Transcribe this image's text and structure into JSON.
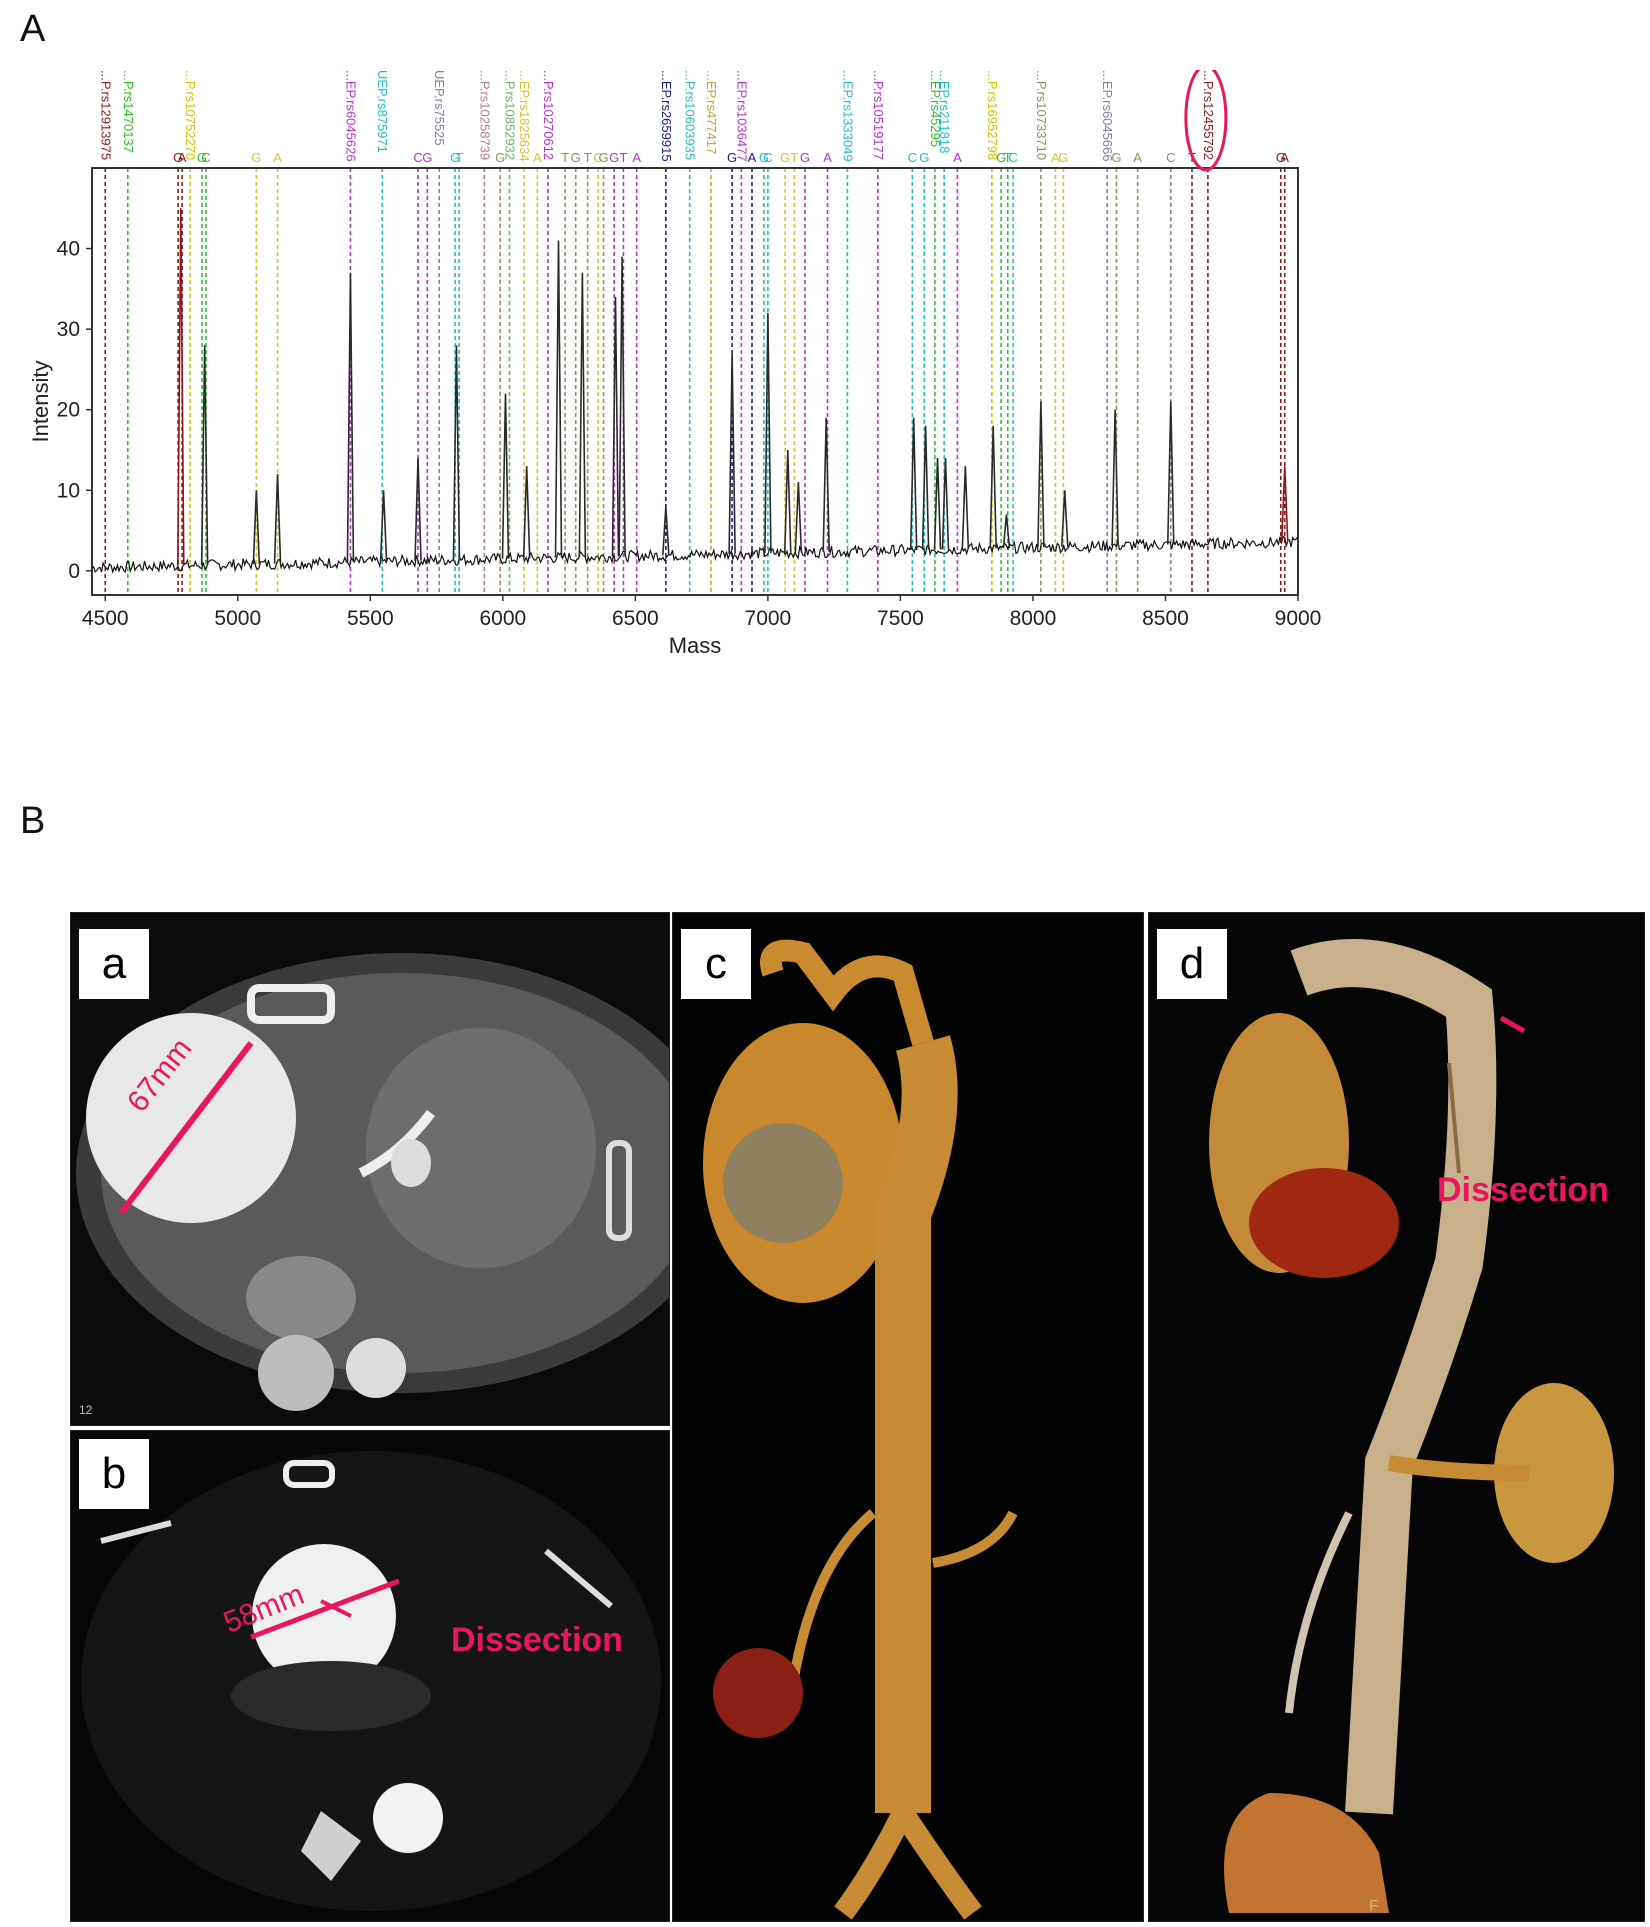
{
  "figure": {
    "panel_A_letter": "A",
    "panel_B_letter": "B"
  },
  "chart_data": {
    "type": "line",
    "xlabel": "Mass",
    "ylabel": "Intensity",
    "xlim": [
      4450,
      9000
    ],
    "ylim": [
      -3,
      50
    ],
    "x_ticks": [
      4500,
      5000,
      5500,
      6000,
      6500,
      7000,
      7500,
      8000,
      8500,
      9000
    ],
    "y_ticks": [
      0,
      10,
      20,
      30,
      40
    ],
    "peaks": [
      {
        "x": 4785,
        "y": 45,
        "color": "#8b1a1a"
      },
      {
        "x": 4875,
        "y": 28,
        "color": "#2a2a2a"
      },
      {
        "x": 5070,
        "y": 10,
        "color": "#2a2a2a"
      },
      {
        "x": 5150,
        "y": 12,
        "color": "#2a2a2a"
      },
      {
        "x": 5425,
        "y": 37,
        "color": "#2a2a2a"
      },
      {
        "x": 5550,
        "y": 10,
        "color": "#2a2a2a"
      },
      {
        "x": 5680,
        "y": 14,
        "color": "#2a2a2a"
      },
      {
        "x": 5825,
        "y": 28,
        "color": "#2a2a2a"
      },
      {
        "x": 6010,
        "y": 22,
        "color": "#2a2a2a"
      },
      {
        "x": 6090,
        "y": 13,
        "color": "#2a2a2a"
      },
      {
        "x": 6210,
        "y": 41,
        "color": "#2a2a2a"
      },
      {
        "x": 6300,
        "y": 37,
        "color": "#2a2a2a"
      },
      {
        "x": 6425,
        "y": 34,
        "color": "#2a2a2a"
      },
      {
        "x": 6450,
        "y": 39,
        "color": "#2a2a2a"
      },
      {
        "x": 6615,
        "y": 8,
        "color": "#2a2a2a"
      },
      {
        "x": 6865,
        "y": 27,
        "color": "#2a2a2a"
      },
      {
        "x": 7000,
        "y": 32,
        "color": "#2a2a2a"
      },
      {
        "x": 7075,
        "y": 15,
        "color": "#2a2a2a"
      },
      {
        "x": 7115,
        "y": 11,
        "color": "#2a2a2a"
      },
      {
        "x": 7220,
        "y": 19,
        "color": "#2a2a2a"
      },
      {
        "x": 7550,
        "y": 19,
        "color": "#2a2a2a"
      },
      {
        "x": 7595,
        "y": 18,
        "color": "#2a2a2a"
      },
      {
        "x": 7640,
        "y": 14,
        "color": "#2a2a2a"
      },
      {
        "x": 7670,
        "y": 14,
        "color": "#2a2a2a"
      },
      {
        "x": 7745,
        "y": 13,
        "color": "#2a2a2a"
      },
      {
        "x": 7850,
        "y": 18,
        "color": "#2a2a2a"
      },
      {
        "x": 7900,
        "y": 7,
        "color": "#2a2a2a"
      },
      {
        "x": 8030,
        "y": 21,
        "color": "#2a2a2a"
      },
      {
        "x": 8120,
        "y": 10,
        "color": "#2a2a2a"
      },
      {
        "x": 8310,
        "y": 20,
        "color": "#2a2a2a"
      },
      {
        "x": 8520,
        "y": 21,
        "color": "#2a2a2a"
      },
      {
        "x": 8950,
        "y": 13,
        "color": "#8b1a1a"
      }
    ],
    "markers": [
      {
        "x": 4500,
        "label": "...P.rs12913975",
        "color": "#8b1a1a",
        "allele": ""
      },
      {
        "x": 4585,
        "label": "...P.rs1470137",
        "color": "#2ec02e",
        "allele": ""
      },
      {
        "x": 4775,
        "label": "",
        "color": "#8b1a1a",
        "allele": "G"
      },
      {
        "x": 4790,
        "label": "",
        "color": "#8b1a1a",
        "allele": "A"
      },
      {
        "x": 4820,
        "label": "...P.rs10752270",
        "color": "#c8c800",
        "allele": ""
      },
      {
        "x": 4865,
        "label": "",
        "color": "#2ec02e",
        "allele": "G"
      },
      {
        "x": 4880,
        "label": "",
        "color": "#2ec02e",
        "allele": "C"
      },
      {
        "x": 5070,
        "label": "",
        "color": "#d4c430",
        "allele": "G"
      },
      {
        "x": 5150,
        "label": "",
        "color": "#d4c430",
        "allele": "A"
      },
      {
        "x": 5425,
        "label": "...EP.rs6045626",
        "color": "#b533c8",
        "allele": ""
      },
      {
        "x": 5545,
        "label": "UEP.rs875971",
        "color": "#20c0c0",
        "allele": ""
      },
      {
        "x": 5680,
        "label": "",
        "color": "#b533c8",
        "allele": "C"
      },
      {
        "x": 5715,
        "label": "",
        "color": "#b533c8",
        "allele": "G"
      },
      {
        "x": 5760,
        "label": "UEP.rs75525",
        "color": "#8080a0",
        "allele": ""
      },
      {
        "x": 5820,
        "label": "",
        "color": "#20c0c0",
        "allele": "G"
      },
      {
        "x": 5835,
        "label": "",
        "color": "#20c0c0",
        "allele": "T"
      },
      {
        "x": 5930,
        "label": "...P.rs10258739",
        "color": "#b08080",
        "allele": ""
      },
      {
        "x": 5990,
        "label": "",
        "color": "#909060",
        "allele": "G"
      },
      {
        "x": 6025,
        "label": "...P.rs10852932",
        "color": "#70b070",
        "allele": ""
      },
      {
        "x": 6080,
        "label": "...EP.rs1825634",
        "color": "#d4c430",
        "allele": ""
      },
      {
        "x": 6130,
        "label": "",
        "color": "#d4c430",
        "allele": "A"
      },
      {
        "x": 6170,
        "label": "...P.rs10270612",
        "color": "#b533c8",
        "allele": ""
      },
      {
        "x": 6235,
        "label": "",
        "color": "#909060",
        "allele": "T"
      },
      {
        "x": 6275,
        "label": "",
        "color": "#909060",
        "allele": "G"
      },
      {
        "x": 6320,
        "label": "",
        "color": "#909060",
        "allele": "T"
      },
      {
        "x": 6360,
        "label": "",
        "color": "#d4c430",
        "allele": "C"
      },
      {
        "x": 6380,
        "label": "",
        "color": "#909060",
        "allele": "G"
      },
      {
        "x": 6420,
        "label": "",
        "color": "#b533c8",
        "allele": "G"
      },
      {
        "x": 6455,
        "label": "",
        "color": "#b533c8",
        "allele": "T"
      },
      {
        "x": 6505,
        "label": "",
        "color": "#b533c8",
        "allele": "A"
      },
      {
        "x": 6615,
        "label": "...EP.rs2659915",
        "color": "#1a1a90",
        "allele": ""
      },
      {
        "x": 6705,
        "label": "...P.rs10603935",
        "color": "#20c0c0",
        "allele": ""
      },
      {
        "x": 6785,
        "label": "...EP.rs477417",
        "color": "#d4a020",
        "allele": ""
      },
      {
        "x": 6865,
        "label": "",
        "color": "#1a1a90",
        "allele": "G"
      },
      {
        "x": 6900,
        "label": "...EP.rs1036477",
        "color": "#b533c8",
        "allele": ""
      },
      {
        "x": 6940,
        "label": "",
        "color": "#1a1a90",
        "allele": "A"
      },
      {
        "x": 6985,
        "label": "",
        "color": "#20c0c0",
        "allele": "G"
      },
      {
        "x": 7000,
        "label": "",
        "color": "#20c0c0",
        "allele": "C"
      },
      {
        "x": 7065,
        "label": "",
        "color": "#d4c430",
        "allele": "G"
      },
      {
        "x": 7100,
        "label": "",
        "color": "#d4c430",
        "allele": "T"
      },
      {
        "x": 7140,
        "label": "",
        "color": "#b533c8",
        "allele": "G"
      },
      {
        "x": 7225,
        "label": "",
        "color": "#b533c8",
        "allele": "A"
      },
      {
        "x": 7300,
        "label": "...EP.rs1333049",
        "color": "#20c0c0",
        "allele": ""
      },
      {
        "x": 7415,
        "label": "...P.rs10519177",
        "color": "#b533c8",
        "allele": ""
      },
      {
        "x": 7545,
        "label": "",
        "color": "#20c0c0",
        "allele": "C"
      },
      {
        "x": 7590,
        "label": "",
        "color": "#20c0c0",
        "allele": "G"
      },
      {
        "x": 7630,
        "label": "...EP.rs45295",
        "color": "#2ec02e",
        "allele": ""
      },
      {
        "x": 7665,
        "label": "...EP.rs211818",
        "color": "#20c0c0",
        "allele": ""
      },
      {
        "x": 7715,
        "label": "",
        "color": "#b533c8",
        "allele": "A"
      },
      {
        "x": 7845,
        "label": "...P.rs16952798",
        "color": "#c8c800",
        "allele": ""
      },
      {
        "x": 7880,
        "label": "",
        "color": "#2ec02e",
        "allele": "G"
      },
      {
        "x": 7905,
        "label": "",
        "color": "#2ec02e",
        "allele": "T"
      },
      {
        "x": 7925,
        "label": "",
        "color": "#20c0c0",
        "allele": "C"
      },
      {
        "x": 8030,
        "label": "...P.rs10733710",
        "color": "#909060",
        "allele": ""
      },
      {
        "x": 8085,
        "label": "",
        "color": "#d4c430",
        "allele": "A"
      },
      {
        "x": 8115,
        "label": "",
        "color": "#d4c430",
        "allele": "G"
      },
      {
        "x": 8280,
        "label": "...EP.rs6045666",
        "color": "#8080a0",
        "allele": ""
      },
      {
        "x": 8315,
        "label": "",
        "color": "#909060",
        "allele": "G"
      },
      {
        "x": 8395,
        "label": "",
        "color": "#909060",
        "allele": "A"
      },
      {
        "x": 8520,
        "label": "",
        "color": "#8080a0",
        "allele": "C"
      },
      {
        "x": 8600,
        "label": "",
        "color": "#8b1a1a",
        "allele": "T"
      },
      {
        "x": 8660,
        "label": "...P.rs12455792",
        "color": "#8b1a1a",
        "allele": ""
      },
      {
        "x": 8935,
        "label": "",
        "color": "#8b1a1a",
        "allele": "G"
      },
      {
        "x": 8950,
        "label": "",
        "color": "#8b1a1a",
        "allele": "A"
      }
    ],
    "highlight_marker_x": 8660,
    "highlight_color": "#e8175d"
  },
  "panel_B": {
    "a": {
      "label": "a",
      "measure": "67mm",
      "slice_no": "12"
    },
    "b": {
      "label": "b",
      "measure": "58mm",
      "annotation": "Dissection"
    },
    "c": {
      "label": "c"
    },
    "d": {
      "label": "d",
      "annotation": "Dissection",
      "corner_mark": "F"
    }
  }
}
